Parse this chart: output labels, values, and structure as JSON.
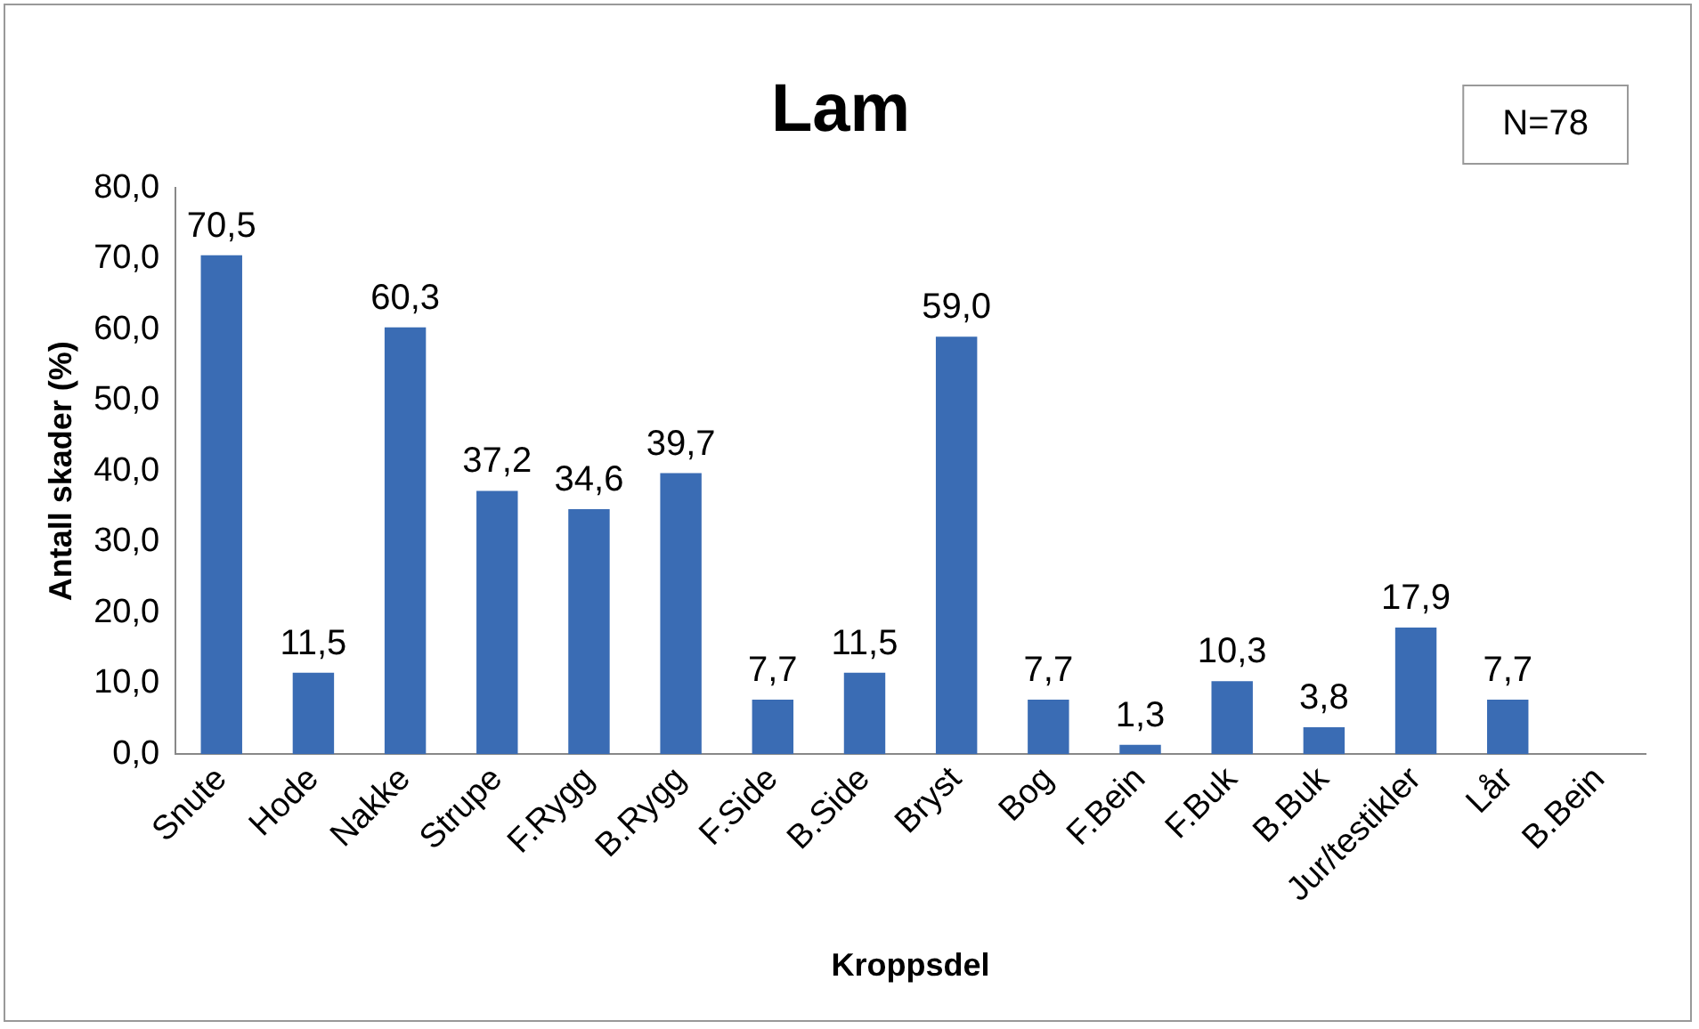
{
  "chart_data": {
    "type": "bar",
    "title": "Lam",
    "ylabel": "Antall skader (%)",
    "xlabel": "Kroppsdel",
    "categories": [
      "Snute",
      "Hode",
      "Nakke",
      "Strupe",
      "F.Rygg",
      "B.Rygg",
      "F.Side",
      "B.Side",
      "Bryst",
      "Bog",
      "F.Bein",
      "F.Buk",
      "B.Buk",
      "Jur/testikler",
      "Lår",
      "B.Bein"
    ],
    "values": [
      70.5,
      11.5,
      60.3,
      37.2,
      34.6,
      39.7,
      7.7,
      11.5,
      59.0,
      7.7,
      1.3,
      10.3,
      3.8,
      17.9,
      7.7,
      null
    ],
    "value_labels": [
      "70,5",
      "11,5",
      "60,3",
      "37,2",
      "34,6",
      "39,7",
      "7,7",
      "11,5",
      "59,0",
      "7,7",
      "1,3",
      "10,3",
      "3,8",
      "17,9",
      "7,7",
      null
    ],
    "color": "#3a6cb4",
    "ylim": [
      0,
      80
    ],
    "yticks": [
      {
        "value": 0,
        "label": "0,0"
      },
      {
        "value": 10,
        "label": "10,0"
      },
      {
        "value": 20,
        "label": "20,0"
      },
      {
        "value": 30,
        "label": "30,0"
      },
      {
        "value": 40,
        "label": "40,0"
      },
      {
        "value": 50,
        "label": "50,0"
      },
      {
        "value": 60,
        "label": "60,0"
      },
      {
        "value": 70,
        "label": "70,0"
      },
      {
        "value": 80,
        "label": "80,0"
      }
    ],
    "grid": false,
    "legend": false,
    "annotations": [
      "N=78"
    ]
  }
}
